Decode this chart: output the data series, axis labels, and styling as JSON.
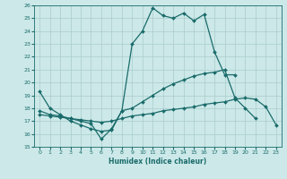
{
  "xlabel": "Humidex (Indice chaleur)",
  "bg_color": "#cce8e8",
  "line_color": "#1a6b6b",
  "grid_color": "#aacccc",
  "xlim": [
    -0.5,
    23.5
  ],
  "ylim": [
    15,
    26
  ],
  "xticks": [
    0,
    1,
    2,
    3,
    4,
    5,
    6,
    7,
    8,
    9,
    10,
    11,
    12,
    13,
    14,
    15,
    16,
    17,
    18,
    19,
    20,
    21,
    22,
    23
  ],
  "yticks": [
    15,
    16,
    17,
    18,
    19,
    20,
    21,
    22,
    23,
    24,
    25,
    26
  ],
  "line1_x": [
    0,
    1,
    2,
    3,
    4,
    5,
    6,
    7,
    8,
    9,
    10,
    11,
    12,
    13,
    14,
    15,
    16,
    17,
    18,
    19
  ],
  "line1_y": [
    19.3,
    18.0,
    17.5,
    17.0,
    16.7,
    16.4,
    16.2,
    16.3,
    17.8,
    23.0,
    24.0,
    25.8,
    25.2,
    25.0,
    25.4,
    24.8,
    25.3,
    22.4,
    20.6,
    20.6
  ],
  "line2_x": [
    0,
    1,
    2,
    3,
    4,
    5,
    6,
    7,
    8,
    9,
    10,
    11,
    12,
    13,
    14,
    15,
    16,
    17,
    18,
    19,
    20,
    21,
    22,
    23
  ],
  "line2_y": [
    17.5,
    17.4,
    17.3,
    17.2,
    17.1,
    17.0,
    16.9,
    17.0,
    17.2,
    17.4,
    17.5,
    17.6,
    17.8,
    17.9,
    18.0,
    18.1,
    18.3,
    18.4,
    18.5,
    18.7,
    18.8,
    18.7,
    18.1,
    16.7
  ],
  "line3_x": [
    0,
    1,
    2,
    3,
    4,
    5,
    6,
    7,
    8,
    9,
    10,
    11,
    12,
    13,
    14,
    15,
    16,
    17,
    18,
    19,
    20,
    21
  ],
  "line3_y": [
    17.8,
    17.5,
    17.4,
    17.2,
    17.0,
    16.8,
    15.6,
    16.4,
    17.8,
    18.0,
    18.5,
    19.0,
    19.5,
    19.9,
    20.2,
    20.5,
    20.7,
    20.8,
    21.0,
    18.8,
    18.0,
    17.2
  ]
}
